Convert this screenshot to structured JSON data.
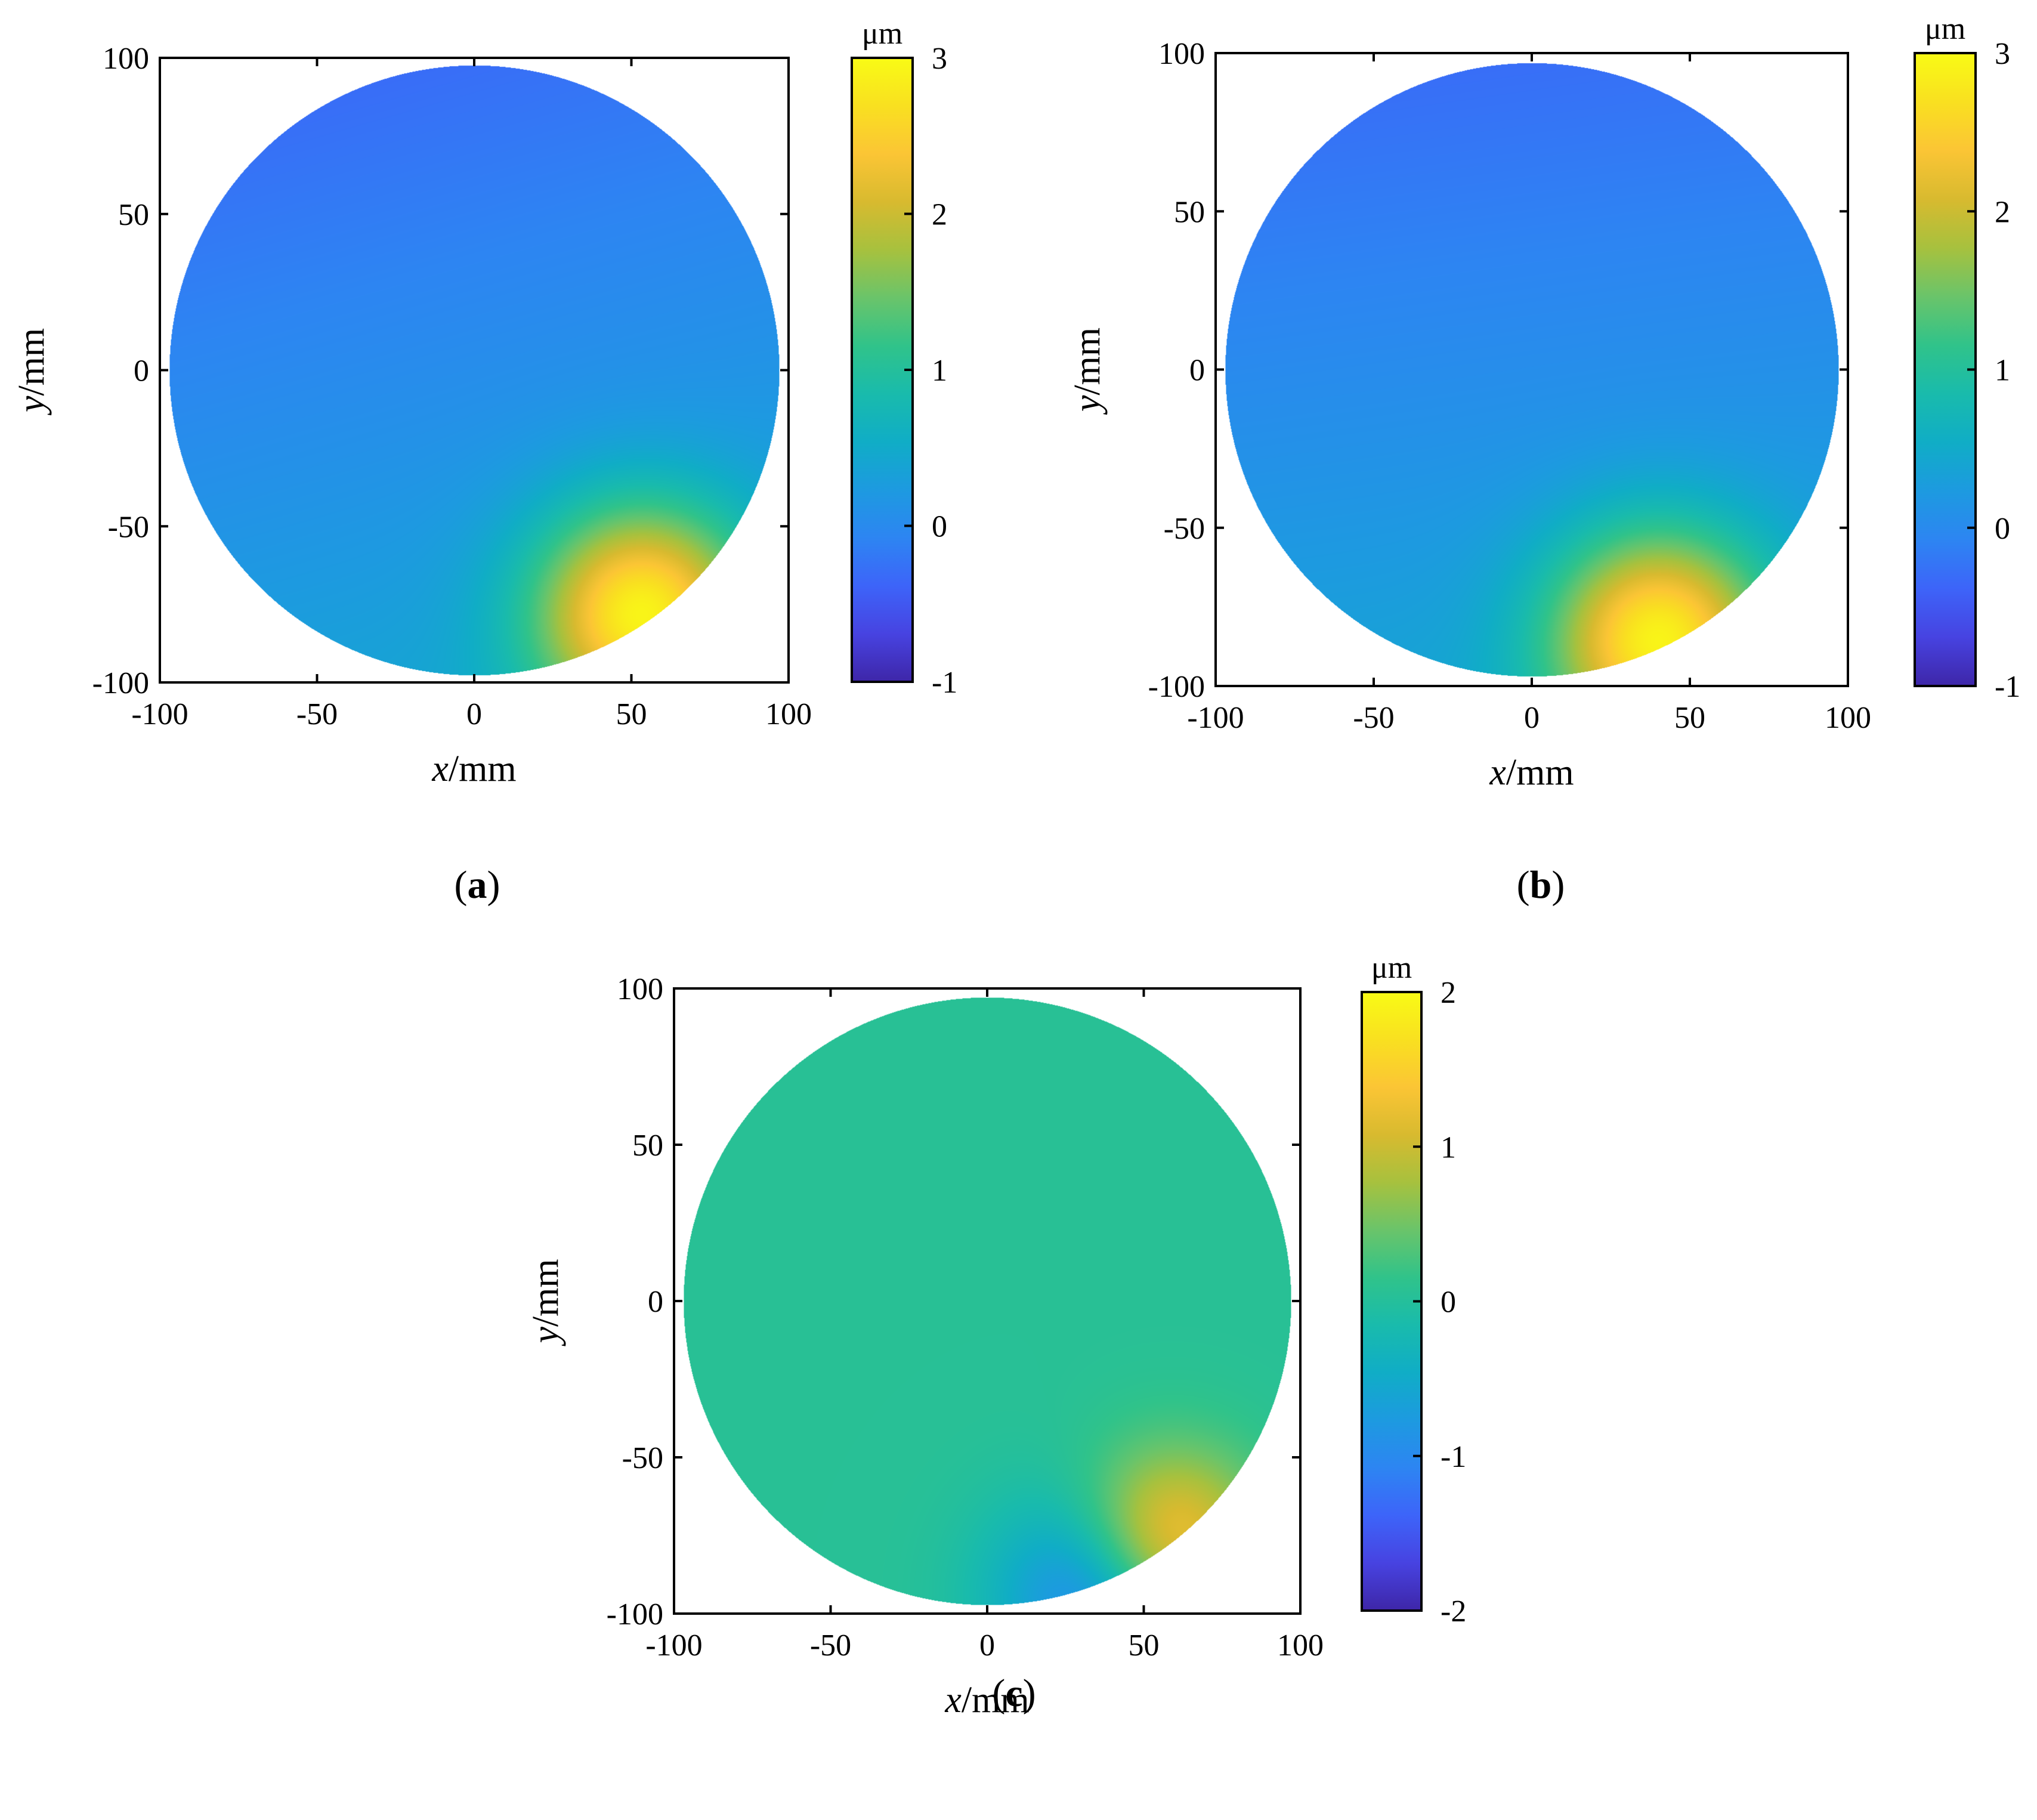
{
  "figure": {
    "panels": [
      {
        "caption": {
          "open": "(",
          "letter": "a",
          "close": ")"
        }
      },
      {
        "caption": {
          "open": "(",
          "letter": "b",
          "close": ")"
        }
      },
      {
        "caption": {
          "open": "(",
          "letter": "c",
          "close": ")"
        }
      }
    ]
  },
  "colormap": [
    "#3e26a8",
    "#4743e1",
    "#3d64f9",
    "#2d85f2",
    "#1d9ae0",
    "#10adc6",
    "#19bbac",
    "#30c38a",
    "#6ac46a",
    "#a7c13e",
    "#d8ba2f",
    "#fbc535",
    "#f9e020",
    "#f9fb15"
  ],
  "chart_data": [
    {
      "type": "heatmap",
      "panel": "a",
      "xlabel": {
        "var": "x",
        "unit": "/mm"
      },
      "ylabel": {
        "var": "y",
        "unit": "/mm"
      },
      "xlim": [
        -100,
        100
      ],
      "ylim": [
        -100,
        100
      ],
      "xticks": [
        "-100",
        "-50",
        "0",
        "50",
        "100"
      ],
      "yticks": [
        "-100",
        "-50",
        "0",
        "50",
        "100"
      ],
      "colorbar": {
        "label": "μm",
        "ticks": [
          "-1",
          "0",
          "1",
          "2",
          "3"
        ],
        "range": [
          -1,
          3
        ]
      },
      "domain": {
        "shape": "circle",
        "radius_mm": 97
      },
      "field": {
        "background_um": 0.05,
        "gradient_um_per_mm": {
          "x": 0.001,
          "y": -0.0035
        },
        "peak": {
          "x": 53,
          "y": -77,
          "value_um": 2.6
        },
        "spread_mm": 24
      }
    },
    {
      "type": "heatmap",
      "panel": "b",
      "xlabel": {
        "var": "x",
        "unit": "/mm"
      },
      "ylabel": {
        "var": "y",
        "unit": "/mm"
      },
      "xlim": [
        -100,
        100
      ],
      "ylim": [
        -100,
        100
      ],
      "xticks": [
        "-100",
        "-50",
        "0",
        "50",
        "100"
      ],
      "yticks": [
        "-100",
        "-50",
        "0",
        "50",
        "100"
      ],
      "colorbar": {
        "label": "μm",
        "ticks": [
          "-1",
          "0",
          "1",
          "2",
          "3"
        ],
        "range": [
          -1,
          3
        ]
      },
      "domain": {
        "shape": "circle",
        "radius_mm": 97
      },
      "field": {
        "background_um": 0.05,
        "gradient_um_per_mm": {
          "x": 0.0005,
          "y": -0.0035
        },
        "peak": {
          "x": 40,
          "y": -85,
          "value_um": 2.6
        },
        "spread_mm": 24
      }
    },
    {
      "type": "heatmap",
      "panel": "c",
      "xlabel": {
        "var": "x",
        "unit": "/mm"
      },
      "ylabel": {
        "var": "y",
        "unit": "/mm"
      },
      "xlim": [
        -100,
        100
      ],
      "ylim": [
        -100,
        100
      ],
      "xticks": [
        "-100",
        "-50",
        "0",
        "50",
        "100"
      ],
      "yticks": [
        "-100",
        "-50",
        "0",
        "50",
        "100"
      ],
      "colorbar": {
        "label": "μm",
        "ticks": [
          "-2",
          "-1",
          "0",
          "1",
          "2"
        ],
        "range": [
          -2,
          2
        ]
      },
      "domain": {
        "shape": "circle",
        "radius_mm": 97
      },
      "field": {
        "background_um": 0.05,
        "gradient_um_per_mm": {
          "x": 0,
          "y": 0
        },
        "peak": {
          "x": 57,
          "y": -77,
          "value_um": 1.6
        },
        "trough": {
          "x": 35,
          "y": -93,
          "value_um": -1.2
        },
        "spread_mm": 20
      }
    }
  ]
}
